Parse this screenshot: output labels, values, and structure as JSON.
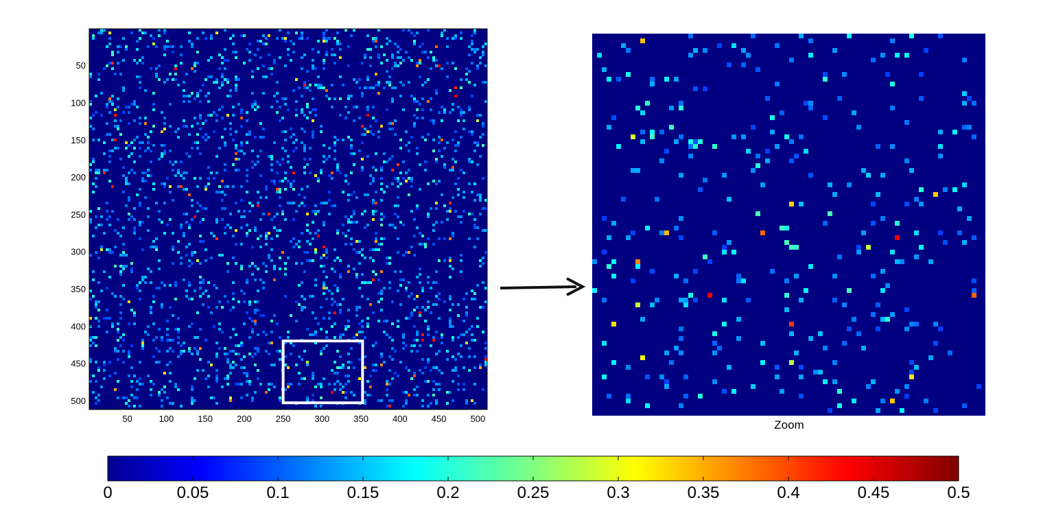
{
  "chart_data": [
    {
      "type": "heatmap",
      "title": "",
      "xlabel": "",
      "ylabel": "",
      "xlim": [
        1,
        512
      ],
      "ylim": [
        512,
        1
      ],
      "y_axis_reversed": true,
      "xticks": [
        50,
        100,
        150,
        200,
        250,
        300,
        350,
        400,
        450,
        500
      ],
      "yticks": [
        50,
        100,
        150,
        200,
        250,
        300,
        350,
        400,
        450,
        500
      ],
      "colormap": "jet",
      "highlight_box": {
        "x_range": [
          250,
          352
        ],
        "y_range": [
          420,
          503
        ],
        "color": "#ffffff"
      }
    },
    {
      "type": "heatmap",
      "title": "",
      "xlabel": "Zoom",
      "ylabel": "",
      "x_range": [
        250,
        352
      ],
      "y_range": [
        420,
        503
      ],
      "colormap": "jet"
    },
    {
      "type": "colorbar",
      "colormap": "jet",
      "range": [
        0,
        0.5
      ],
      "ticks": [
        "0",
        "0.05",
        "0.1",
        "0.15",
        "0.2",
        "0.25",
        "0.3",
        "0.35",
        "0.4",
        "0.45",
        "0.5"
      ]
    }
  ],
  "colors": {
    "background": "#000080",
    "arrow": "#111111",
    "highlight_box": "#ffffff",
    "axes": "#000000"
  }
}
